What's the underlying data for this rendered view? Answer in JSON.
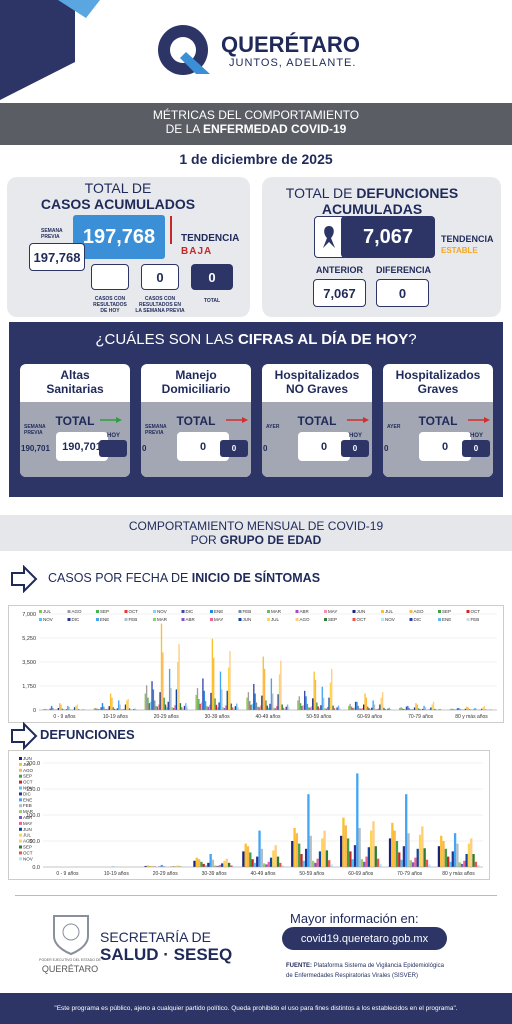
{
  "header": {
    "brand": "QUERÉTARO",
    "slogan": "JUNTOS, ADELANTE."
  },
  "banner": {
    "line1": "MÉTRICAS DEL COMPORTAMIENTO",
    "line2_prefix": "DE LA",
    "line2_bold": "ENFERMEDAD COVID-19"
  },
  "date": "1 de diciembre de 2025",
  "cases": {
    "title1": "TOTAL DE",
    "title2": "CASOS ACUMULADOS",
    "current": "197,768",
    "previous_label": "SEMANA PREVIA",
    "previous": "197,768",
    "trend_label": "TENDENCIA",
    "trend": "BAJA",
    "today_label": "CASOS CON RESULTADOS DE HOY",
    "week_label": "CASOS CON RESULTADOS EN LA SEMANA PREVIA",
    "week": "0",
    "total_label": "TOTAL",
    "total": "0"
  },
  "deaths": {
    "title1": "TOTAL DE",
    "title2": "DEFUNCIONES",
    "title3": "ACUMULADAS",
    "value": "7,067",
    "trend_label": "TENDENCIA",
    "trend": "ESTABLE",
    "prev_label": "ANTERIOR",
    "prev": "7,067",
    "diff_label": "DIFERENCIA",
    "diff": "0"
  },
  "today": {
    "q1": "¿CUÁLES SON LAS",
    "q2": "CIFRAS AL DÍA DE HOY",
    "q3": "?",
    "cards": [
      {
        "title": [
          "Altas",
          "Sanitarias"
        ],
        "total_label": "TOTAL",
        "prev_label": "SEMANA PREVIA",
        "prev": "190,701",
        "current": "190,701",
        "right_label": "HOY"
      },
      {
        "title": [
          "Manejo",
          "Domiciliario"
        ],
        "total_label": "TOTAL",
        "prev_label": "SEMANA PREVIA",
        "prev": "0",
        "current": "0",
        "right": "0"
      },
      {
        "title": [
          "Hospitalizados",
          "NO Graves"
        ],
        "total_label": "TOTAL",
        "prev_label": "AYER",
        "prev": "0",
        "current": "0",
        "right_label": "HOY",
        "right": "0"
      },
      {
        "title": [
          "Hospitalizados",
          "Graves"
        ],
        "total_label": "TOTAL",
        "prev_label": "AYER",
        "prev": "0",
        "current": "0",
        "right_label": "HOY",
        "right": "0"
      }
    ]
  },
  "banner2": {
    "line1": "COMPORTAMIENTO MENSUAL DE COVID-19",
    "line2_prefix": "POR",
    "line2_bold": "GRUPO DE EDAD"
  },
  "cases_heading": {
    "prefix": "CASOS POR FECHA DE",
    "bold": "INICIO DE SÍNTOMAS"
  },
  "deaths_heading": "DEFUNCIONES",
  "footer": {
    "seal_line1": "PODER EJECUTIVO DEL ESTADO DE",
    "seal_line2": "QUERÉTARO",
    "org1": "SECRETARÍA DE",
    "org2": "SALUD · SESEQ",
    "info": "Mayor información en:",
    "url": "covid19.queretaro.gob.mx",
    "source_label": "FUENTE:",
    "source1": "Plataforma Sistema de Vigilancia Epidemiológica",
    "source2": "de Enfermedades Respiratorias Virales (SISVER)",
    "disclaimer": "\"Este programa es público, ajeno a cualquier partido político. Queda prohibido el uso para fines distintos a los establecidos en el programa\"."
  },
  "chart_data": [
    {
      "type": "bar",
      "categories": [
        "0 - 9 años",
        "10-19 años",
        "20-29 años",
        "30-39 años",
        "40-49 años",
        "50-59 años",
        "60-69 años",
        "70-79 años",
        "80 y más años"
      ],
      "ylim": [
        0,
        7000
      ],
      "yticks": [
        0,
        {
          "value": 1750,
          "label": "1,750"
        },
        {
          "value": 3500,
          "label": "3,500"
        },
        {
          "value": 5250,
          "label": "5,250"
        },
        {
          "value": 7000,
          "label": "7,000"
        }
      ],
      "grid": true,
      "series": [
        {
          "name": "JUL",
          "color": "#8bc34a",
          "values": [
            60,
            120,
            1200,
            1100,
            900,
            700,
            300,
            150,
            80
          ]
        },
        {
          "name": "AGO",
          "color": "#9e9e9e",
          "values": [
            80,
            150,
            1800,
            1600,
            1300,
            1000,
            450,
            200,
            100
          ]
        },
        {
          "name": "SEP",
          "color": "#4caf50",
          "values": [
            50,
            90,
            900,
            800,
            650,
            500,
            250,
            120,
            60
          ]
        },
        {
          "name": "OCT",
          "color": "#e53935",
          "values": [
            30,
            60,
            500,
            450,
            380,
            300,
            150,
            70,
            40
          ]
        },
        {
          "name": "NOV",
          "color": "#81d4fa",
          "values": [
            40,
            80,
            600,
            550,
            450,
            350,
            170,
            80,
            40
          ]
        },
        {
          "name": "DIC",
          "color": "#3949ab",
          "values": [
            100,
            200,
            2100,
            2300,
            1900,
            1400,
            600,
            250,
            120
          ]
        },
        {
          "name": "ENE",
          "color": "#1e88e5",
          "values": [
            300,
            500,
            1500,
            1400,
            1200,
            1000,
            600,
            300,
            150
          ]
        },
        {
          "name": "FEB",
          "color": "#78909c",
          "values": [
            150,
            250,
            700,
            650,
            550,
            450,
            300,
            150,
            80
          ]
        },
        {
          "name": "MAR",
          "color": "#66bb6a",
          "values": [
            40,
            80,
            300,
            280,
            240,
            200,
            120,
            60,
            30
          ]
        },
        {
          "name": "ABR",
          "color": "#ab47bc",
          "values": [
            30,
            60,
            250,
            230,
            200,
            170,
            100,
            50,
            25
          ]
        },
        {
          "name": "MAY",
          "color": "#f48fb1",
          "values": [
            50,
            90,
            400,
            380,
            320,
            260,
            150,
            70,
            35
          ]
        },
        {
          "name": "JUN",
          "color": "#1a237e",
          "values": [
            150,
            280,
            1300,
            1250,
            1050,
            850,
            400,
            180,
            90
          ]
        },
        {
          "name": "JUL",
          "color": "#fbc02d",
          "values": [
            500,
            1200,
            6300,
            5200,
            3900,
            2800,
            1200,
            500,
            250
          ]
        },
        {
          "name": "AGO",
          "color": "#ffb74d",
          "values": [
            400,
            900,
            4200,
            3800,
            3000,
            2200,
            900,
            400,
            180
          ]
        },
        {
          "name": "SEP",
          "color": "#43a047",
          "values": [
            100,
            200,
            900,
            850,
            700,
            550,
            250,
            120,
            60
          ]
        },
        {
          "name": "OCT",
          "color": "#c62828",
          "values": [
            40,
            80,
            400,
            380,
            320,
            260,
            130,
            60,
            30
          ]
        },
        {
          "name": "NOV",
          "color": "#4fc3f7",
          "values": [
            20,
            40,
            200,
            190,
            160,
            130,
            70,
            30,
            15
          ]
        },
        {
          "name": "DIC",
          "color": "#283593",
          "values": [
            60,
            120,
            600,
            550,
            450,
            350,
            170,
            80,
            40
          ]
        },
        {
          "name": "ENE",
          "color": "#42a5f5",
          "values": [
            300,
            700,
            3000,
            2800,
            2300,
            1700,
            700,
            300,
            150
          ]
        },
        {
          "name": "FEB",
          "color": "#b0bec5",
          "values": [
            200,
            400,
            1600,
            1500,
            1200,
            900,
            400,
            200,
            100
          ]
        },
        {
          "name": "MAR",
          "color": "#9ccc65",
          "values": [
            30,
            60,
            200,
            190,
            160,
            130,
            70,
            30,
            15
          ]
        },
        {
          "name": "ABR",
          "color": "#7e57c2",
          "values": [
            20,
            40,
            150,
            140,
            120,
            100,
            50,
            25,
            12
          ]
        },
        {
          "name": "MAY",
          "color": "#f06292",
          "values": [
            40,
            80,
            350,
            330,
            280,
            220,
            110,
            50,
            25
          ]
        },
        {
          "name": "JUN",
          "color": "#0d47a1",
          "values": [
            200,
            400,
            1500,
            1400,
            1150,
            900,
            400,
            180,
            90
          ]
        },
        {
          "name": "JUL",
          "color": "#ffd54f",
          "values": [
            300,
            700,
            3500,
            3100,
            2600,
            2000,
            900,
            400,
            200
          ]
        },
        {
          "name": "AGO",
          "color": "#ffcc80",
          "values": [
            400,
            800,
            4800,
            4300,
            3600,
            3000,
            1300,
            600,
            300
          ]
        },
        {
          "name": "SEP",
          "color": "#2e7d32",
          "values": [
            60,
            120,
            500,
            470,
            400,
            320,
            160,
            80,
            40
          ]
        },
        {
          "name": "OCT",
          "color": "#ef5350",
          "values": [
            20,
            40,
            200,
            190,
            160,
            130,
            70,
            30,
            15
          ]
        },
        {
          "name": "NOV",
          "color": "#b3e5fc",
          "values": [
            10,
            20,
            100,
            95,
            80,
            65,
            35,
            15,
            8
          ]
        },
        {
          "name": "DIC",
          "color": "#303f9f",
          "values": [
            30,
            60,
            300,
            280,
            240,
            190,
            100,
            45,
            22
          ]
        },
        {
          "name": "ENE",
          "color": "#64b5f6",
          "values": [
            50,
            100,
            500,
            470,
            400,
            320,
            160,
            80,
            40
          ]
        },
        {
          "name": "FEB",
          "color": "#cfd8dc",
          "values": [
            30,
            60,
            250,
            230,
            200,
            160,
            80,
            40,
            20
          ]
        }
      ]
    },
    {
      "type": "bar",
      "categories": [
        "0 - 9 años",
        "10-19 años",
        "20-29 años",
        "30-39 años",
        "40-49 años",
        "50-59 años",
        "60-69 años",
        "70-79 años",
        "80 y más años"
      ],
      "ylim": [
        0,
        200
      ],
      "yticks": [
        {
          "value": 0,
          "label": "0.0"
        },
        {
          "value": 50,
          "label": "50.0"
        },
        {
          "value": 100,
          "label": "100.0"
        },
        {
          "value": 150,
          "label": "150.0"
        },
        {
          "value": 200,
          "label": "200.0"
        }
      ],
      "grid": true,
      "series": [
        {
          "name": "JUN",
          "color": "#1a237e",
          "values": [
            0,
            0,
            2,
            12,
            30,
            50,
            60,
            55,
            40
          ]
        },
        {
          "name": "JUL",
          "color": "#fbc02d",
          "values": [
            0,
            0,
            3,
            18,
            45,
            75,
            95,
            85,
            60
          ]
        },
        {
          "name": "AGO",
          "color": "#ffb74d",
          "values": [
            0,
            0,
            2,
            15,
            40,
            65,
            80,
            70,
            50
          ]
        },
        {
          "name": "SEP",
          "color": "#43a047",
          "values": [
            0,
            0,
            1,
            10,
            28,
            45,
            55,
            50,
            35
          ]
        },
        {
          "name": "OCT",
          "color": "#c62828",
          "values": [
            0,
            0,
            1,
            6,
            15,
            25,
            30,
            28,
            20
          ]
        },
        {
          "name": "NOV",
          "color": "#4fc3f7",
          "values": [
            0,
            0,
            0,
            3,
            8,
            12,
            15,
            14,
            10
          ]
        },
        {
          "name": "DIC",
          "color": "#283593",
          "values": [
            0,
            0,
            1,
            8,
            20,
            35,
            42,
            40,
            30
          ]
        },
        {
          "name": "ENE",
          "color": "#42a5f5",
          "values": [
            0,
            1,
            4,
            25,
            70,
            140,
            180,
            140,
            65
          ]
        },
        {
          "name": "FEB",
          "color": "#b0bec5",
          "values": [
            0,
            0,
            2,
            14,
            35,
            60,
            75,
            65,
            45
          ]
        },
        {
          "name": "MAR",
          "color": "#9ccc65",
          "values": [
            0,
            0,
            0,
            3,
            7,
            12,
            15,
            13,
            9
          ]
        },
        {
          "name": "ABR",
          "color": "#7e57c2",
          "values": [
            0,
            0,
            0,
            2,
            5,
            8,
            10,
            9,
            6
          ]
        },
        {
          "name": "MAY",
          "color": "#f06292",
          "values": [
            0,
            0,
            1,
            4,
            10,
            16,
            20,
            18,
            12
          ]
        },
        {
          "name": "JUN",
          "color": "#0d47a1",
          "values": [
            0,
            0,
            1,
            7,
            18,
            30,
            38,
            35,
            25
          ]
        },
        {
          "name": "JUL",
          "color": "#ffd54f",
          "values": [
            0,
            0,
            2,
            12,
            32,
            55,
            70,
            62,
            45
          ]
        },
        {
          "name": "AGO",
          "color": "#ffcc80",
          "values": [
            0,
            0,
            3,
            16,
            42,
            70,
            88,
            78,
            55
          ]
        },
        {
          "name": "SEP",
          "color": "#2e7d32",
          "values": [
            0,
            0,
            1,
            8,
            20,
            32,
            40,
            36,
            25
          ]
        },
        {
          "name": "OCT",
          "color": "#ef5350",
          "values": [
            0,
            0,
            0,
            3,
            8,
            13,
            16,
            14,
            10
          ]
        },
        {
          "name": "NOV",
          "color": "#b3e5fc",
          "values": [
            0,
            0,
            0,
            1,
            3,
            5,
            6,
            5,
            4
          ]
        }
      ]
    }
  ]
}
